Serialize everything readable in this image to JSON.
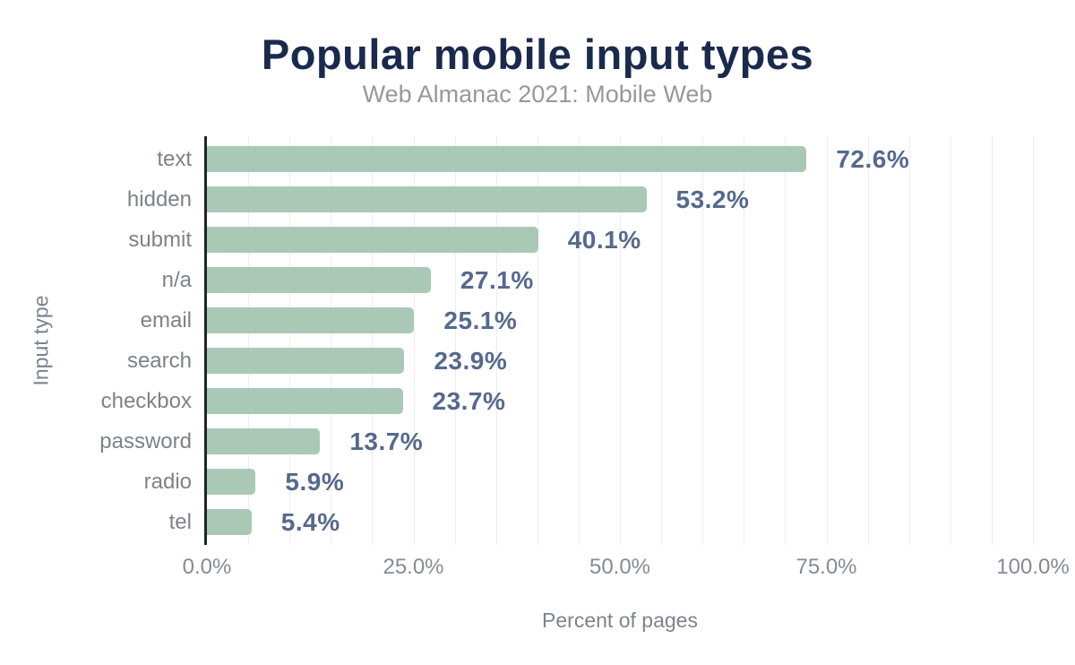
{
  "chart_data": {
    "type": "bar",
    "orientation": "horizontal",
    "title": "Popular mobile input types",
    "subtitle": "Web Almanac 2021: Mobile Web",
    "xlabel": "Percent of pages",
    "ylabel": "Input type",
    "categories": [
      "text",
      "hidden",
      "submit",
      "n/a",
      "email",
      "search",
      "checkbox",
      "password",
      "radio",
      "tel"
    ],
    "values": [
      72.6,
      53.2,
      40.1,
      27.1,
      25.1,
      23.9,
      23.7,
      13.7,
      5.9,
      5.4
    ],
    "value_labels": [
      "72.6%",
      "53.2%",
      "40.1%",
      "27.1%",
      "25.1%",
      "23.9%",
      "23.7%",
      "13.7%",
      "5.9%",
      "5.4%"
    ],
    "x_ticks": [
      "0.0%",
      "25.0%",
      "50.0%",
      "75.0%",
      "100.0%"
    ],
    "xlim": [
      0,
      100
    ],
    "grid": "vertical minor gridlines every 5%",
    "legend": "none"
  },
  "colors": {
    "background": "#ffffff",
    "bar": "#a9c9b6",
    "title": "#1a2a4c",
    "subtitle": "#96989b",
    "value": "#56698c",
    "category": "#7d828a",
    "tick": "#858b94",
    "axis_title": "#7d838d",
    "grid": "#ededf2",
    "axis_line": "#202428"
  }
}
